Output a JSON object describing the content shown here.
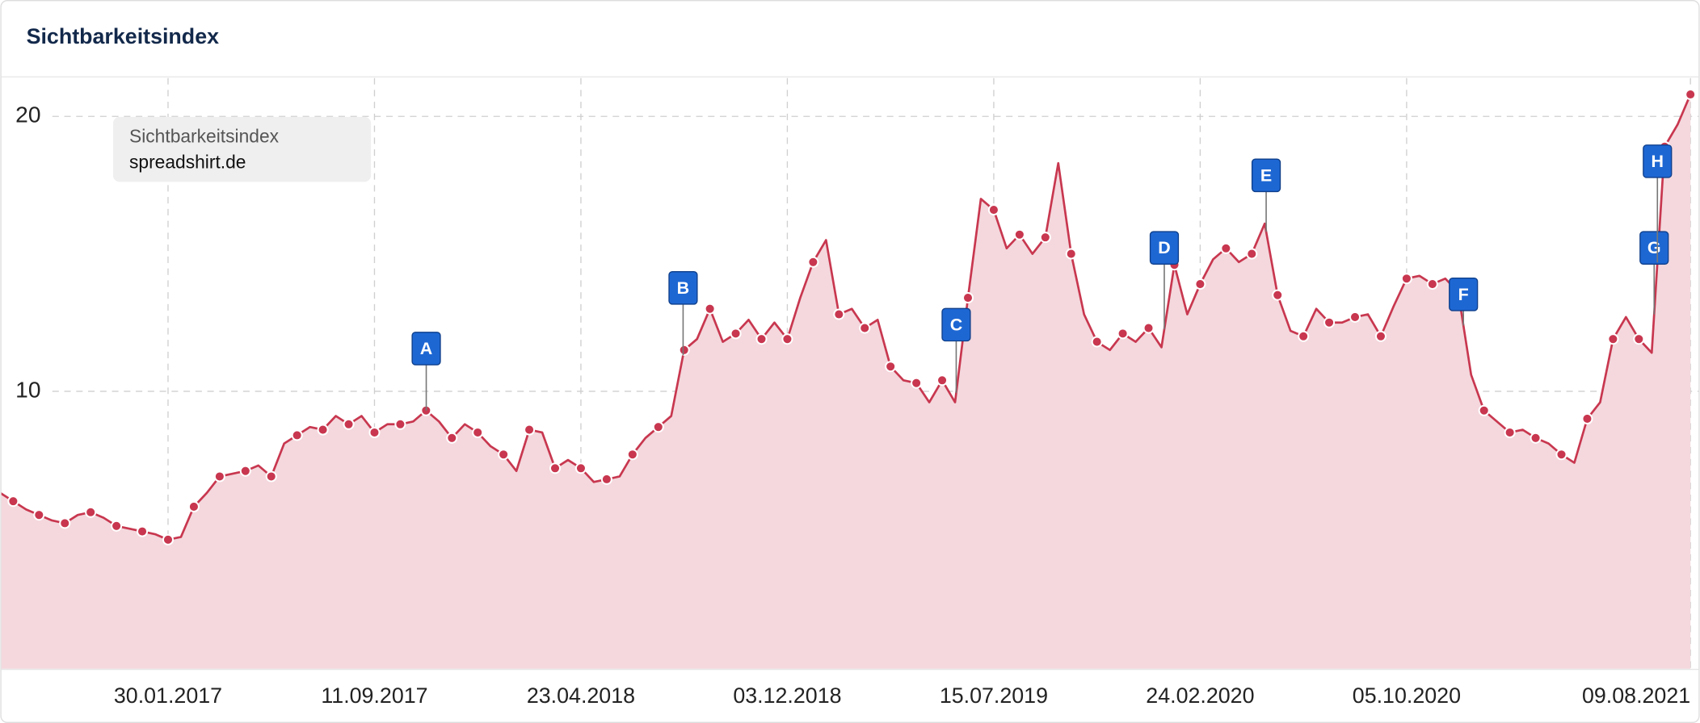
{
  "chart_data": {
    "type": "area",
    "title": "Sichtbarkeitsindex",
    "legend_title": "Sichtbarkeitsindex",
    "x": [
      "01.08.2016",
      "15.08.2016",
      "29.08.2016",
      "12.09.2016",
      "26.09.2016",
      "10.10.2016",
      "24.10.2016",
      "07.11.2016",
      "21.11.2016",
      "05.12.2016",
      "19.12.2016",
      "02.01.2017",
      "16.01.2017",
      "30.01.2017",
      "13.02.2017",
      "27.02.2017",
      "13.03.2017",
      "27.03.2017",
      "10.04.2017",
      "24.04.2017",
      "08.05.2017",
      "22.05.2017",
      "05.06.2017",
      "19.06.2017",
      "03.07.2017",
      "17.07.2017",
      "31.07.2017",
      "14.08.2017",
      "28.08.2017",
      "11.09.2017",
      "25.09.2017",
      "09.10.2017",
      "23.10.2017",
      "06.11.2017",
      "20.11.2017",
      "04.12.2017",
      "18.12.2017",
      "01.01.2018",
      "15.01.2018",
      "29.01.2018",
      "12.02.2018",
      "26.02.2018",
      "12.03.2018",
      "26.03.2018",
      "09.04.2018",
      "23.04.2018",
      "07.05.2018",
      "21.05.2018",
      "04.06.2018",
      "18.06.2018",
      "02.07.2018",
      "16.07.2018",
      "30.07.2018",
      "13.08.2018",
      "27.08.2018",
      "10.09.2018",
      "24.09.2018",
      "08.10.2018",
      "22.10.2018",
      "05.11.2018",
      "19.11.2018",
      "03.12.2018",
      "17.12.2018",
      "31.12.2018",
      "14.01.2019",
      "28.01.2019",
      "11.02.2019",
      "25.02.2019",
      "11.03.2019",
      "25.03.2019",
      "08.04.2019",
      "22.04.2019",
      "06.05.2019",
      "20.05.2019",
      "03.06.2019",
      "17.06.2019",
      "01.07.2019",
      "15.07.2019",
      "29.07.2019",
      "12.08.2019",
      "26.08.2019",
      "09.09.2019",
      "23.09.2019",
      "07.10.2019",
      "21.10.2019",
      "04.11.2019",
      "18.11.2019",
      "02.12.2019",
      "16.12.2019",
      "30.12.2019",
      "13.01.2020",
      "27.01.2020",
      "10.02.2020",
      "24.02.2020",
      "09.03.2020",
      "23.03.2020",
      "06.04.2020",
      "20.04.2020",
      "04.05.2020",
      "18.05.2020",
      "01.06.2020",
      "15.06.2020",
      "29.06.2020",
      "13.07.2020",
      "27.07.2020",
      "10.08.2020",
      "24.08.2020",
      "07.09.2020",
      "21.09.2020",
      "05.10.2020",
      "19.10.2020",
      "02.11.2020",
      "16.11.2020",
      "30.11.2020",
      "14.12.2020",
      "28.12.2020",
      "11.01.2021",
      "25.01.2021",
      "08.02.2021",
      "22.02.2021",
      "08.03.2021",
      "22.03.2021",
      "05.04.2021",
      "19.04.2021",
      "03.05.2021",
      "17.05.2021",
      "31.05.2021",
      "14.06.2021",
      "28.06.2021",
      "12.07.2021",
      "26.07.2021",
      "09.08.2021"
    ],
    "series": [
      {
        "name": "spreadshirt.de",
        "color": "#c8374f",
        "fill": "#f4d8dd",
        "values": [
          6.3,
          6.0,
          5.7,
          5.5,
          5.3,
          5.2,
          5.5,
          5.6,
          5.4,
          5.1,
          5.0,
          4.9,
          4.8,
          4.6,
          4.7,
          5.8,
          6.3,
          6.9,
          7.0,
          7.1,
          7.3,
          6.9,
          8.1,
          8.4,
          8.7,
          8.6,
          9.1,
          8.8,
          9.1,
          8.5,
          8.8,
          8.8,
          8.9,
          9.3,
          8.9,
          8.3,
          8.8,
          8.5,
          8.0,
          7.7,
          7.1,
          8.6,
          8.5,
          7.2,
          7.5,
          7.2,
          6.7,
          6.8,
          6.9,
          7.7,
          8.3,
          8.7,
          9.1,
          11.5,
          11.9,
          13.0,
          11.8,
          12.1,
          12.6,
          11.9,
          12.5,
          11.9,
          13.4,
          14.7,
          15.5,
          12.8,
          13.0,
          12.3,
          12.6,
          10.9,
          10.4,
          10.3,
          9.6,
          10.4,
          9.6,
          13.4,
          17.0,
          16.6,
          15.2,
          15.7,
          15.0,
          15.6,
          18.3,
          15.0,
          12.8,
          11.8,
          11.5,
          12.1,
          11.8,
          12.3,
          11.6,
          14.6,
          12.8,
          13.9,
          14.8,
          15.2,
          14.7,
          15.0,
          16.1,
          13.5,
          12.2,
          12.0,
          13.0,
          12.5,
          12.5,
          12.7,
          12.8,
          12.0,
          13.1,
          14.1,
          14.2,
          13.9,
          14.1,
          13.6,
          10.6,
          9.3,
          8.9,
          8.5,
          8.6,
          8.3,
          8.1,
          7.7,
          7.4,
          9.0,
          9.6,
          11.9,
          12.7,
          11.9,
          11.4,
          18.9,
          19.7,
          20.8
        ]
      }
    ],
    "xlim": [
      "01.08.2016",
      "19.08.2021"
    ],
    "xticks": [
      "30.01.2017",
      "11.09.2017",
      "23.04.2018",
      "03.12.2018",
      "15.07.2019",
      "24.02.2020",
      "05.10.2020",
      "09.08.2021"
    ],
    "ylim": [
      -0.1,
      21.4
    ],
    "yticks": [
      10,
      20
    ],
    "grid": true,
    "annotations": [
      "A",
      "B",
      "C",
      "D",
      "E",
      "F",
      "G",
      "H"
    ]
  }
}
